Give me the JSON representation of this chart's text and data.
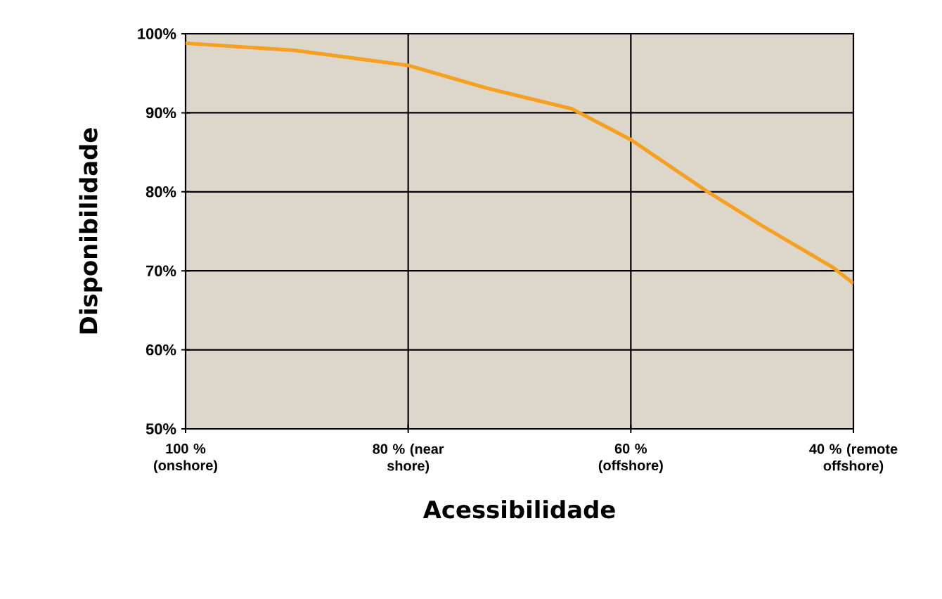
{
  "chart_data": {
    "type": "line",
    "xlabel": "Acessibilidade",
    "ylabel": "Disponibilidade",
    "xlim": [
      100,
      40
    ],
    "ylim": [
      50,
      100
    ],
    "xticks": [
      {
        "value": 100,
        "label": "100 % (onshore)"
      },
      {
        "value": 80,
        "label": "80 % (near shore)"
      },
      {
        "value": 60,
        "label": "60 % (offshore)"
      },
      {
        "value": 40,
        "label": "40 % (remote offshore)"
      }
    ],
    "yticks": [
      {
        "value": 50,
        "label": "50%"
      },
      {
        "value": 60,
        "label": "60%"
      },
      {
        "value": 70,
        "label": "70%"
      },
      {
        "value": 80,
        "label": "80%"
      },
      {
        "value": 90,
        "label": "90%"
      },
      {
        "value": 100,
        "label": "100%"
      }
    ],
    "grid": true,
    "series": [
      {
        "color": "#f5a020",
        "x": [
          100,
          90.2,
          80,
          72.9,
          65.3,
          60,
          53.2,
          48.2,
          41.8,
          40
        ],
        "values": [
          98.8,
          97.9,
          96.0,
          93.1,
          90.5,
          86.6,
          80.1,
          75.7,
          70.4,
          68.4
        ]
      }
    ]
  }
}
